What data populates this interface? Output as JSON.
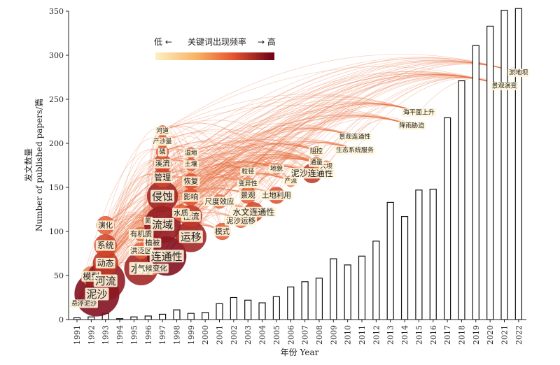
{
  "chart_data": {
    "type": "bar",
    "ylabel_cn": "发文数量",
    "ylabel_en": "Number of published papers/篇",
    "xlabel": "年份 Year",
    "ylim": [
      0,
      350
    ],
    "yticks": [
      0,
      50,
      100,
      150,
      200,
      250,
      300,
      350
    ],
    "categories": [
      "1991",
      "1992",
      "1993",
      "1994",
      "1995",
      "1996",
      "1997",
      "1998",
      "1999",
      "2000",
      "2001",
      "2002",
      "2003",
      "2004",
      "2005",
      "2006",
      "2007",
      "2008",
      "2009",
      "2010",
      "2011",
      "2012",
      "2013",
      "2014",
      "2015",
      "2016",
      "2017",
      "2018",
      "2019",
      "2020",
      "2021",
      "2022"
    ],
    "values": [
      2,
      3,
      7,
      1,
      3,
      4,
      6,
      11,
      7,
      8,
      18,
      25,
      22,
      19,
      26,
      37,
      43,
      47,
      69,
      62,
      72,
      89,
      133,
      117,
      147,
      148,
      229,
      271,
      311,
      333,
      351,
      353
    ],
    "legend": {
      "low": "低 ←",
      "title": "关键词出现频率",
      "high": "→ 高",
      "colors": [
        "#fde9b5",
        "#f7b262",
        "#e8552e",
        "#a01526",
        "#5e0016"
      ]
    },
    "keywords": [
      {
        "label": "悬浮泥沙",
        "year": 1991,
        "value": 18,
        "size": 0,
        "freq": 0.2
      },
      {
        "label": "泥沙",
        "year": 1992.4,
        "value": 29,
        "size": 32,
        "freq": 0.95
      },
      {
        "label": "模型",
        "year": 1992,
        "value": 49,
        "size": 14,
        "freq": 0.5
      },
      {
        "label": "河流",
        "year": 1993,
        "value": 44,
        "size": 28,
        "freq": 0.9
      },
      {
        "label": "动态",
        "year": 1993,
        "value": 64,
        "size": 18,
        "freq": 0.75
      },
      {
        "label": "系统",
        "year": 1993,
        "value": 84,
        "size": 16,
        "freq": 0.7
      },
      {
        "label": "演化",
        "year": 1993,
        "value": 107,
        "size": 13,
        "freq": 0.6
      },
      {
        "label": "水力",
        "year": 1995.5,
        "value": 58,
        "size": 24,
        "freq": 0.85
      },
      {
        "label": "洪泛区",
        "year": 1995.5,
        "value": 78,
        "size": 12,
        "freq": 0.6
      },
      {
        "label": "有机质",
        "year": 1995.5,
        "value": 97,
        "size": 10,
        "freq": 0.55
      },
      {
        "label": "植被",
        "year": 1996.3,
        "value": 87,
        "size": 12,
        "freq": 0.6
      },
      {
        "label": "氮",
        "year": 1996,
        "value": 112,
        "size": 8,
        "freq": 0.5
      },
      {
        "label": "气候变化",
        "year": 1996.3,
        "value": 58,
        "size": 10,
        "freq": 0.5
      },
      {
        "label": "连通性",
        "year": 1997.3,
        "value": 72,
        "size": 28,
        "freq": 0.95
      },
      {
        "label": "流域",
        "year": 1997,
        "value": 108,
        "size": 26,
        "freq": 0.9
      },
      {
        "label": "侵蚀",
        "year": 1997,
        "value": 140,
        "size": 22,
        "freq": 0.85
      },
      {
        "label": "管理",
        "year": 1997,
        "value": 161,
        "size": 14,
        "freq": 0.7
      },
      {
        "label": "溪流",
        "year": 1997,
        "value": 177,
        "size": 13,
        "freq": 0.7
      },
      {
        "label": "磷",
        "year": 1997,
        "value": 190,
        "size": 9,
        "freq": 0.6
      },
      {
        "label": "产沙量",
        "year": 1997,
        "value": 202,
        "size": 9,
        "freq": 0.6
      },
      {
        "label": "河道",
        "year": 1997,
        "value": 214,
        "size": 8,
        "freq": 0.55
      },
      {
        "label": "运移",
        "year": 1999,
        "value": 94,
        "size": 22,
        "freq": 0.85
      },
      {
        "label": "径流",
        "year": 1999,
        "value": 117,
        "size": 16,
        "freq": 0.75
      },
      {
        "label": "水质",
        "year": 1998.3,
        "value": 121,
        "size": 12,
        "freq": 0.6
      },
      {
        "label": "影响",
        "year": 1999,
        "value": 139,
        "size": 12,
        "freq": 0.65
      },
      {
        "label": "恢复",
        "year": 1999,
        "value": 157,
        "size": 11,
        "freq": 0.65
      },
      {
        "label": "土壤",
        "year": 1999,
        "value": 176,
        "size": 9,
        "freq": 0.6
      },
      {
        "label": "湿地",
        "year": 1999,
        "value": 189,
        "size": 8,
        "freq": 0.55
      },
      {
        "label": "模式",
        "year": 2001.2,
        "value": 100,
        "size": 12,
        "freq": 0.6
      },
      {
        "label": "尺度效应",
        "year": 2001,
        "value": 134,
        "size": 10,
        "freq": 0.55
      },
      {
        "label": "泥沙运移",
        "year": 2002.5,
        "value": 112,
        "size": 10,
        "freq": 0.55
      },
      {
        "label": "水文连通性",
        "year": 2003.4,
        "value": 122,
        "size": 14,
        "freq": 0.7
      },
      {
        "label": "景观",
        "year": 2003,
        "value": 141,
        "size": 12,
        "freq": 0.6
      },
      {
        "label": "变异性",
        "year": 2003,
        "value": 154,
        "size": 9,
        "freq": 0.5
      },
      {
        "label": "粒径",
        "year": 2003,
        "value": 168,
        "size": 7,
        "freq": 0.45
      },
      {
        "label": "土地利用",
        "year": 2005,
        "value": 141,
        "size": 12,
        "freq": 0.65
      },
      {
        "label": "产流",
        "year": 2006,
        "value": 157,
        "size": 8,
        "freq": 0.5
      },
      {
        "label": "地貌",
        "year": 2005,
        "value": 171,
        "size": 8,
        "freq": 0.5
      },
      {
        "label": "泥沙连通性",
        "year": 2007.5,
        "value": 166,
        "size": 14,
        "freq": 0.75
      },
      {
        "label": "大坝",
        "year": 2008.5,
        "value": 174,
        "size": 8,
        "freq": 0.5
      },
      {
        "label": "通量",
        "year": 2007.8,
        "value": 178,
        "size": 8,
        "freq": 0.5
      },
      {
        "label": "阻控",
        "year": 2007.8,
        "value": 191,
        "size": 7,
        "freq": 0.45
      },
      {
        "label": "景观连通性",
        "year": 2010.5,
        "value": 207,
        "size": 3,
        "freq": 0.35
      },
      {
        "label": "生态系统服务",
        "year": 2010.5,
        "value": 192,
        "size": 3,
        "freq": 0.35
      },
      {
        "label": "降雨胁迫",
        "year": 2014.5,
        "value": 220,
        "size": 3,
        "freq": 0.35
      },
      {
        "label": "海平面上升",
        "year": 2015,
        "value": 235,
        "size": 3,
        "freq": 0.35
      },
      {
        "label": "景观演变",
        "year": 2021,
        "value": 265,
        "size": 2,
        "freq": 0.3
      },
      {
        "label": "淤地坝",
        "year": 2022,
        "value": 280,
        "size": 2,
        "freq": 0.3
      }
    ]
  }
}
